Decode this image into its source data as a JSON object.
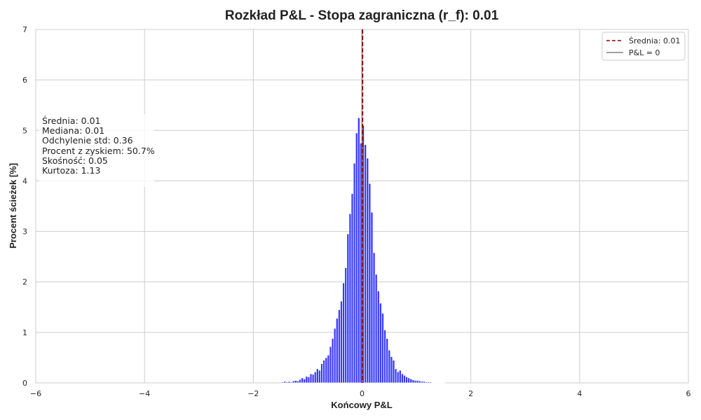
{
  "chart_data": {
    "type": "bar",
    "title": "Rozkład P&L - Stopa zagraniczna (r_f): 0.01",
    "xlabel": "Końcowy P&L",
    "ylabel": "Procent ścieżek [%]",
    "xlim": [
      -6,
      6
    ],
    "ylim": [
      0,
      7
    ],
    "xticks": [
      -6,
      -4,
      -2,
      0,
      2,
      4,
      6
    ],
    "xtick_labels": [
      "−6",
      "−4",
      "−2",
      "0",
      "2",
      "4",
      "6"
    ],
    "yticks": [
      0,
      1,
      2,
      3,
      4,
      5,
      6,
      7
    ],
    "ytick_labels": [
      "0",
      "1",
      "2",
      "3",
      "4",
      "5",
      "6",
      "7"
    ],
    "grid": true,
    "legend_position": "top-right",
    "bin_width": 0.04,
    "series": [
      {
        "name": "",
        "color": "#0000ff",
        "bins_start": [
          -1.48,
          -1.44,
          -1.4,
          -1.36,
          -1.32,
          -1.28,
          -1.24,
          -1.2,
          -1.16,
          -1.12,
          -1.08,
          -1.04,
          -1.0,
          -0.96,
          -0.92,
          -0.88,
          -0.84,
          -0.8,
          -0.76,
          -0.72,
          -0.68,
          -0.64,
          -0.6,
          -0.56,
          -0.52,
          -0.48,
          -0.44,
          -0.4,
          -0.36,
          -0.32,
          -0.28,
          -0.24,
          -0.2,
          -0.16,
          -0.12,
          -0.08,
          -0.04,
          0.0,
          0.04,
          0.08,
          0.12,
          0.16,
          0.2,
          0.24,
          0.28,
          0.32,
          0.36,
          0.4,
          0.44,
          0.48,
          0.52,
          0.56,
          0.6,
          0.64,
          0.68,
          0.72,
          0.76,
          0.8,
          0.84,
          0.88,
          0.92,
          0.96,
          1.0,
          1.04,
          1.08,
          1.12,
          1.16,
          1.2,
          1.24,
          1.28,
          1.32,
          1.36,
          1.4,
          1.44,
          1.48
        ],
        "values": [
          0.02,
          0.03,
          0.02,
          0.03,
          0.02,
          0.04,
          0.05,
          0.04,
          0.07,
          0.1,
          0.08,
          0.13,
          0.12,
          0.18,
          0.17,
          0.22,
          0.28,
          0.25,
          0.38,
          0.45,
          0.5,
          0.55,
          0.72,
          0.88,
          1.08,
          1.28,
          1.45,
          1.62,
          1.98,
          2.28,
          2.95,
          3.35,
          3.75,
          4.35,
          4.95,
          5.25,
          4.75,
          5.1,
          4.72,
          4.45,
          3.95,
          3.38,
          2.58,
          2.15,
          1.82,
          1.58,
          1.38,
          1.05,
          0.88,
          0.65,
          0.52,
          0.45,
          0.28,
          0.22,
          0.25,
          0.18,
          0.15,
          0.12,
          0.1,
          0.08,
          0.06,
          0.05,
          0.05,
          0.04,
          0.03,
          0.03,
          0.02,
          0.02,
          0.02,
          0.01,
          0.01,
          0.01,
          0.01,
          0.01,
          0.01
        ]
      }
    ],
    "reference_lines": {
      "mean": {
        "x": 0.01,
        "color": "#8b0000",
        "style": "dashed",
        "legend": "Średnia: 0.01"
      },
      "zero": {
        "x": 0,
        "color": "#808080",
        "style": "solid",
        "legend": "P&L = 0"
      }
    },
    "stats_box": [
      "Średnia: 0.01",
      "Mediana: 0.01",
      "Odchylenie std: 0.36",
      "Procent z zyskiem: 50.7%",
      "Skośność: 0.05",
      "Kurtoza: 1.13"
    ]
  }
}
